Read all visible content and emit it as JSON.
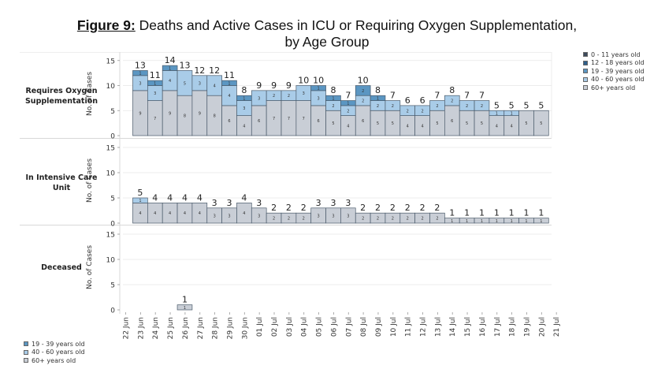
{
  "title": {
    "figure_label": "Figure 9:",
    "line1": " Deaths and Active Cases in ICU or Requiring Oxygen Supplementation,",
    "line2": "by Age Group"
  },
  "colors": {
    "0-11": "#3d4a5c",
    "12-18": "#2f5f8a",
    "19-39": "#5b96c2",
    "40-60": "#a9cce8",
    "60+": "#c9ced6",
    "bar_border": "#4a5a6a",
    "grid": "#e6e6e6"
  },
  "legend_top": [
    {
      "label": "0 - 11 years old",
      "key": "0-11"
    },
    {
      "label": "12 - 18 years old",
      "key": "12-18"
    },
    {
      "label": "19 - 39 years old",
      "key": "19-39"
    },
    {
      "label": "40 - 60 years old",
      "key": "40-60"
    },
    {
      "label": "60+ years old",
      "key": "60+"
    }
  ],
  "legend_bottom": [
    {
      "label": "19 - 39 years old",
      "key": "19-39"
    },
    {
      "label": "40 - 60 years old",
      "key": "40-60"
    },
    {
      "label": "60+ years old",
      "key": "60+"
    }
  ],
  "chart_data": {
    "type": "bar",
    "stacked": true,
    "title": "Figure 9: Deaths and Active Cases in ICU or Requiring Oxygen Supplementation, by Age Group",
    "ylabel": "No. of Cases",
    "ylim": [
      0,
      15
    ],
    "yticks": [
      0,
      5,
      10,
      15
    ],
    "x_tick_labels": [
      "22 Jun",
      "23 Jun",
      "24 Jun",
      "25 Jun",
      "26 Jun",
      "27 Jun",
      "28 Jun",
      "29 Jun",
      "30 Jun",
      "01 Jul",
      "02 Jul",
      "03 Jul",
      "04 Jul",
      "05 Jul",
      "06 Jul",
      "07 Jul",
      "08 Jul",
      "09 Jul",
      "10 Jul",
      "11 Jul",
      "12 Jul",
      "13 Jul",
      "14 Jul",
      "15 Jul",
      "16 Jul",
      "17 Jul",
      "18 Jul",
      "19 Jul",
      "20 Jul",
      "21 Jul"
    ],
    "categories": [
      "23 Jun",
      "24 Jun",
      "25 Jun",
      "26 Jun",
      "27 Jun",
      "28 Jun",
      "29 Jun",
      "30 Jun",
      "01 Jul",
      "02 Jul",
      "03 Jul",
      "04 Jul",
      "05 Jul",
      "06 Jul",
      "07 Jul",
      "08 Jul",
      "09 Jul",
      "10 Jul",
      "11 Jul",
      "12 Jul",
      "13 Jul",
      "14 Jul",
      "15 Jul",
      "16 Jul",
      "17 Jul",
      "18 Jul",
      "19 Jul",
      "20 Jul"
    ],
    "panels": [
      {
        "name": "Requires Oxygen Supplementation",
        "series": [
          {
            "name": "60+ years old",
            "key": "60+",
            "values": [
              9,
              7,
              9,
              8,
              9,
              8,
              6,
              4,
              6,
              7,
              7,
              7,
              6,
              5,
              4,
              6,
              5,
              5,
              4,
              4,
              5,
              6,
              5,
              5,
              4,
              4,
              5,
              5
            ]
          },
          {
            "name": "40 - 60 years old",
            "key": "40-60",
            "values": [
              3,
              3,
              4,
              5,
              3,
              4,
              4,
              3,
              3,
              2,
              2,
              3,
              3,
              2,
              2,
              2,
              2,
              2,
              2,
              2,
              2,
              2,
              2,
              2,
              1,
              1,
              0,
              0
            ]
          },
          {
            "name": "19 - 39 years old",
            "key": "19-39",
            "values": [
              1,
              1,
              1,
              0,
              0,
              0,
              1,
              1,
              0,
              0,
              0,
              0,
              1,
              1,
              1,
              2,
              1,
              0,
              0,
              0,
              0,
              0,
              0,
              0,
              0,
              0,
              0,
              0
            ]
          }
        ],
        "totals": [
          13,
          11,
          14,
          13,
          12,
          12,
          11,
          8,
          9,
          9,
          9,
          10,
          10,
          8,
          7,
          10,
          8,
          7,
          6,
          6,
          7,
          8,
          7,
          7,
          5,
          5,
          5,
          5
        ]
      },
      {
        "name": "In Intensive Care Unit",
        "series": [
          {
            "name": "60+ years old",
            "key": "60+",
            "values": [
              4,
              4,
              4,
              4,
              4,
              3,
              3,
              4,
              3,
              2,
              2,
              2,
              3,
              3,
              3,
              2,
              2,
              2,
              2,
              2,
              2,
              1,
              1,
              1,
              1,
              1,
              1,
              1
            ]
          },
          {
            "name": "40 - 60 years old",
            "key": "40-60",
            "values": [
              1,
              0,
              0,
              0,
              0,
              0,
              0,
              0,
              0,
              0,
              0,
              0,
              0,
              0,
              0,
              0,
              0,
              0,
              0,
              0,
              0,
              0,
              0,
              0,
              0,
              0,
              0,
              0
            ]
          }
        ],
        "totals": [
          5,
          4,
          4,
          4,
          4,
          3,
          3,
          4,
          3,
          2,
          2,
          2,
          3,
          3,
          3,
          2,
          2,
          2,
          2,
          2,
          2,
          1,
          1,
          1,
          1,
          1,
          1,
          1
        ]
      },
      {
        "name": "Deceased",
        "series": [
          {
            "name": "60+ years old",
            "key": "60+",
            "values": [
              0,
              0,
              0,
              1,
              0,
              0,
              0,
              0,
              0,
              0,
              0,
              0,
              0,
              0,
              0,
              0,
              0,
              0,
              0,
              0,
              0,
              0,
              0,
              0,
              0,
              0,
              0,
              0
            ]
          }
        ],
        "totals": [
          0,
          0,
          0,
          1,
          0,
          0,
          0,
          0,
          0,
          0,
          0,
          0,
          0,
          0,
          0,
          0,
          0,
          0,
          0,
          0,
          0,
          0,
          0,
          0,
          0,
          0,
          0,
          0
        ]
      }
    ]
  },
  "row_labels": {
    "oxygen_line1": "Requires Oxygen",
    "oxygen_line2": "Supplementation",
    "icu_line1": "In Intensive Care",
    "icu_line2": "Unit",
    "deceased": "Deceased"
  },
  "axis_title": "No. of Cases"
}
